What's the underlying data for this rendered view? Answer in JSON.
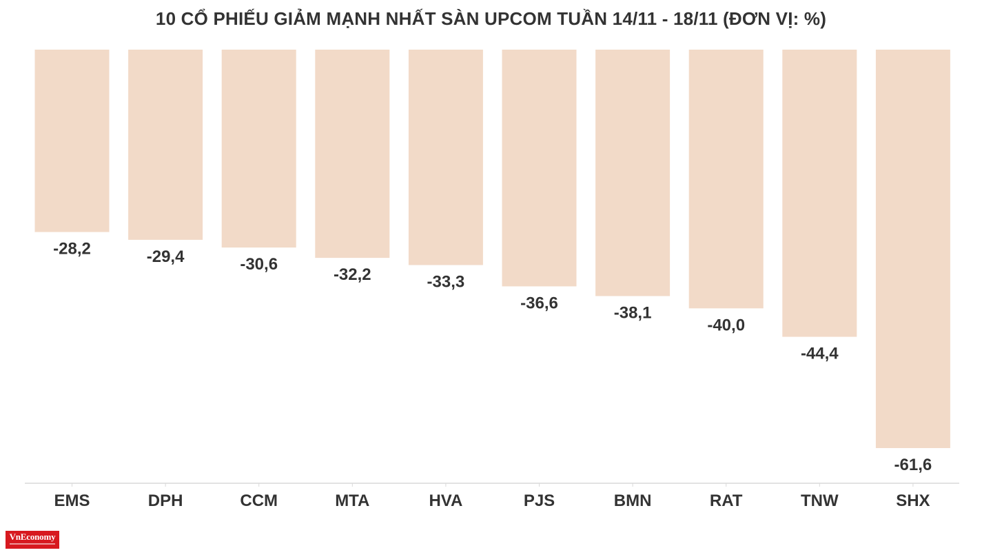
{
  "chart_data": {
    "type": "bar",
    "title": "10 CỔ PHIẾU GIẢM MẠNH NHẤT SÀN UPCOM TUẦN 14/11 - 18/11 (ĐƠN VỊ: %)",
    "categories": [
      "EMS",
      "DPH",
      "CCM",
      "MTA",
      "HVA",
      "PJS",
      "BMN",
      "RAT",
      "TNW",
      "SHX"
    ],
    "values": [
      -28.2,
      -29.4,
      -30.6,
      -32.2,
      -33.3,
      -36.6,
      -38.1,
      -40.0,
      -44.4,
      -61.6
    ],
    "value_labels": [
      "-28,2",
      "-29,4",
      "-30,6",
      "-32,2",
      "-33,3",
      "-36,6",
      "-38,1",
      "-40,0",
      "-44,4",
      "-61,6"
    ],
    "xlabel": "",
    "ylabel": "",
    "grid": false,
    "bar_color": "#f2dac8",
    "label_color": "#333333"
  },
  "branding": {
    "logo_text": "VnEconomy"
  }
}
